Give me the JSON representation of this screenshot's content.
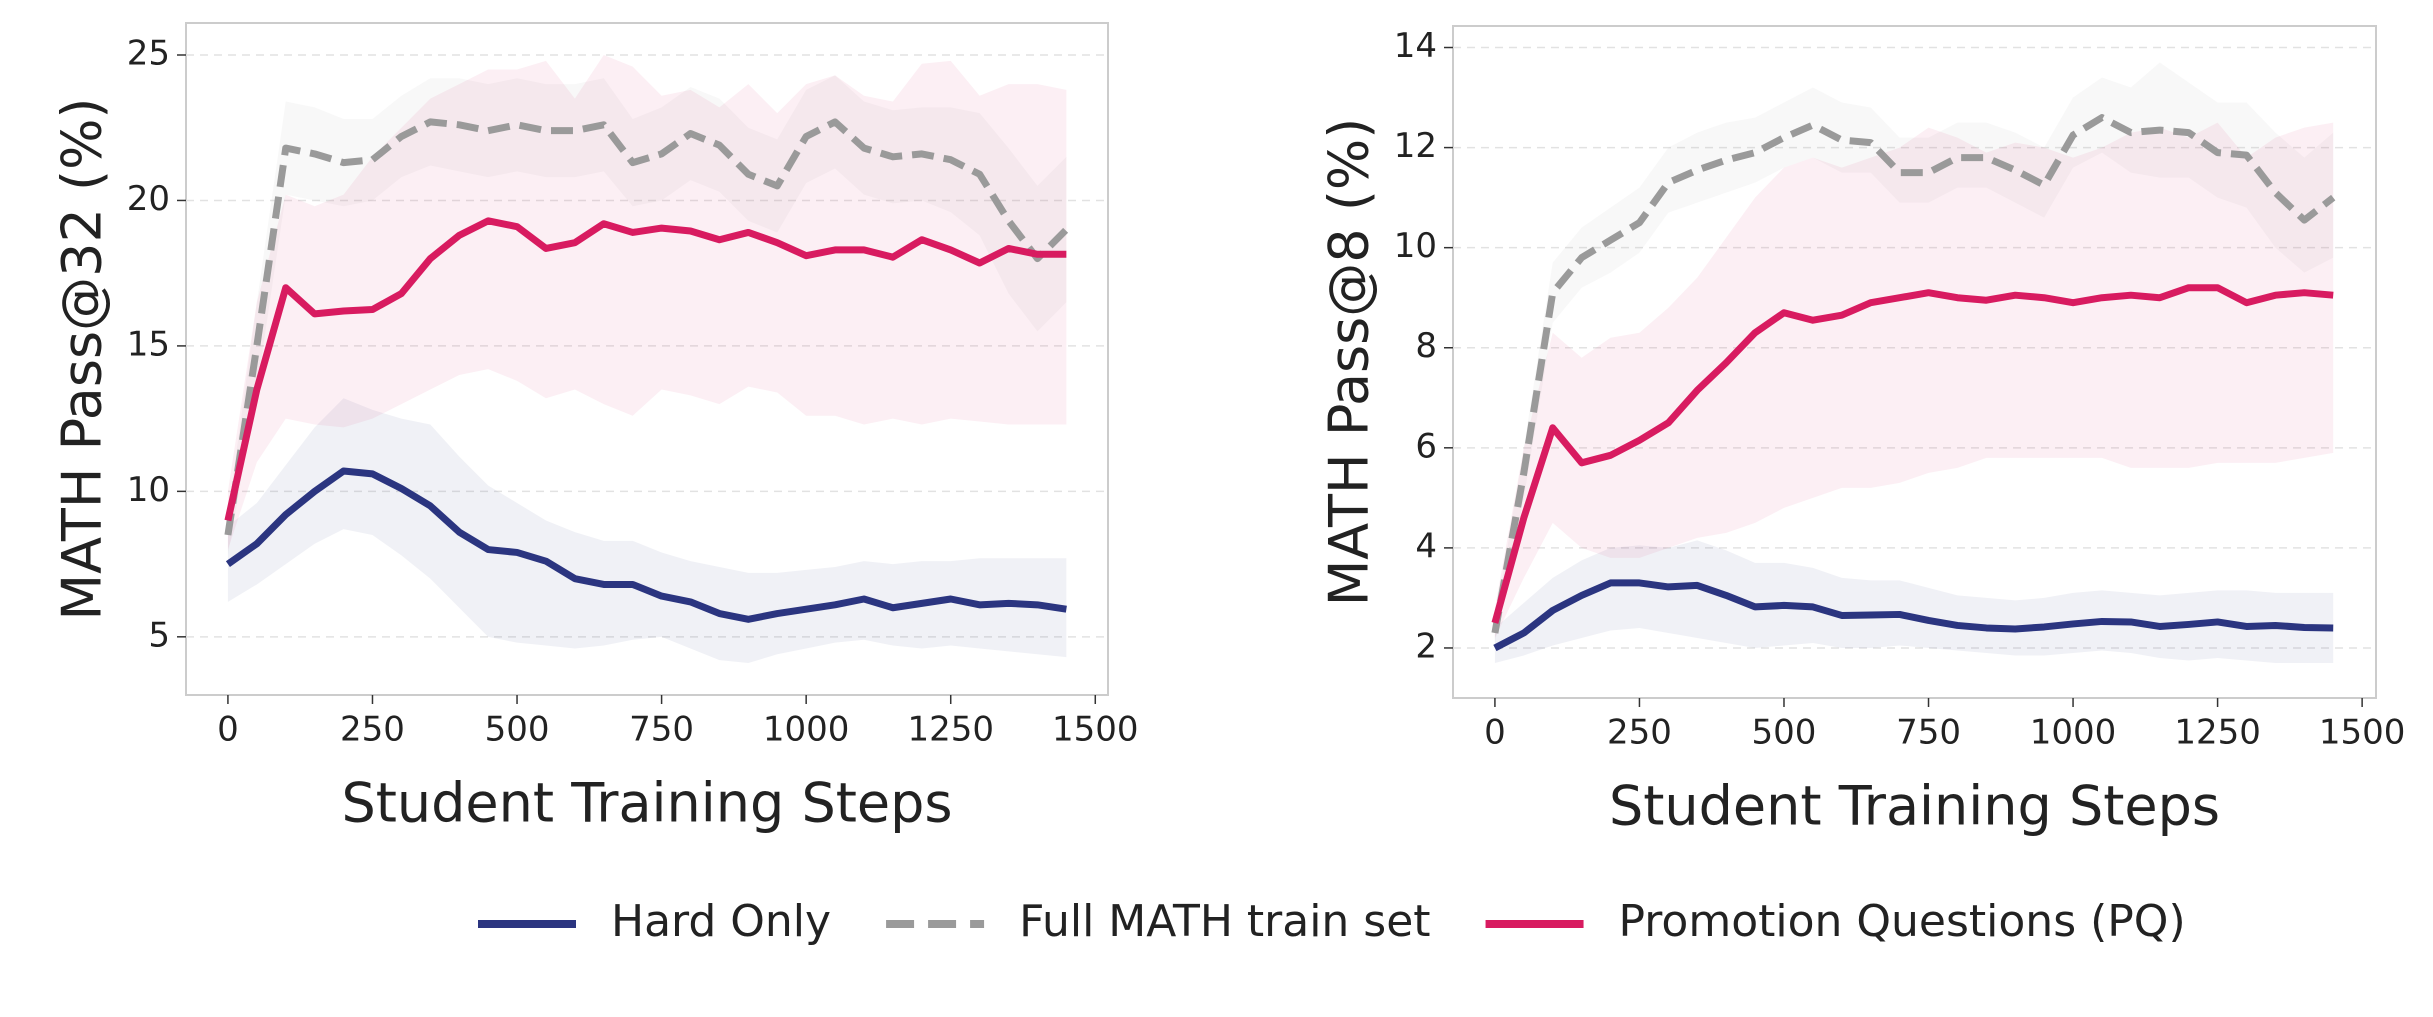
{
  "chart_data": [
    {
      "type": "line",
      "xlabel": "Student Training Steps",
      "ylabel": "MATH Pass@32 (%)",
      "x": [
        0,
        50,
        100,
        150,
        200,
        250,
        300,
        350,
        400,
        450,
        500,
        550,
        600,
        650,
        700,
        750,
        800,
        850,
        900,
        950,
        1000,
        1050,
        1100,
        1150,
        1200,
        1250,
        1300,
        1350,
        1400,
        1450
      ],
      "xlim": [
        -72.5,
        1522
      ],
      "ylim": [
        3,
        26.1
      ],
      "xticks": [
        0,
        250,
        500,
        750,
        1000,
        1250,
        1500
      ],
      "yticks": [
        5,
        10,
        15,
        20,
        25
      ],
      "grid": true,
      "series": [
        {
          "color": "#2b3580",
          "dashed": false,
          "values": [
            7.5,
            8.2,
            9.2,
            10.0,
            10.7,
            10.6,
            10.1,
            9.5,
            8.6,
            8.0,
            7.9,
            7.6,
            7.0,
            6.8,
            6.8,
            6.4,
            6.2,
            5.8,
            5.6,
            5.8,
            5.95,
            6.1,
            6.3,
            6.0,
            6.15,
            6.3,
            6.1,
            6.15,
            6.1,
            5.95
          ],
          "lower": [
            6.2,
            6.8,
            7.5,
            8.2,
            8.7,
            8.5,
            7.8,
            7.0,
            6.0,
            5.0,
            4.8,
            4.7,
            4.6,
            4.7,
            4.9,
            5.0,
            4.6,
            4.2,
            4.1,
            4.4,
            4.6,
            4.8,
            4.9,
            4.7,
            4.6,
            4.7,
            4.6,
            4.5,
            4.4,
            4.3
          ],
          "upper": [
            8.8,
            9.6,
            10.9,
            12.2,
            13.2,
            12.8,
            12.5,
            12.3,
            11.2,
            10.2,
            9.6,
            9.0,
            8.6,
            8.3,
            8.3,
            7.9,
            7.6,
            7.4,
            7.2,
            7.2,
            7.3,
            7.4,
            7.6,
            7.5,
            7.6,
            7.6,
            7.7,
            7.7,
            7.7,
            7.7
          ]
        },
        {
          "color": "#9a9a9a",
          "dashed": true,
          "values": [
            8.5,
            15,
            21.8,
            21.6,
            21.3,
            21.4,
            22.2,
            22.7,
            22.6,
            22.4,
            22.6,
            22.4,
            22.4,
            22.6,
            21.3,
            21.6,
            22.3,
            21.9,
            20.9,
            20.5,
            22.2,
            22.7,
            21.8,
            21.5,
            21.6,
            21.4,
            20.9,
            19.3,
            18.0,
            19.0
          ],
          "lower": [
            7.8,
            13.5,
            20.2,
            20.0,
            19.8,
            20.0,
            20.8,
            21.2,
            21.0,
            20.8,
            21.0,
            20.8,
            20.8,
            21.0,
            19.8,
            20.0,
            20.7,
            20.3,
            19.3,
            18.9,
            20.6,
            21.1,
            20.2,
            19.9,
            20.0,
            19.6,
            18.8,
            16.8,
            15.5,
            16.5
          ],
          "upper": [
            9.2,
            16.5,
            23.4,
            23.2,
            22.8,
            22.8,
            23.6,
            24.2,
            24.2,
            24.0,
            24.2,
            24.0,
            24.0,
            24.2,
            22.8,
            23.2,
            23.9,
            23.5,
            22.5,
            22.1,
            23.8,
            24.3,
            23.4,
            23.1,
            23.2,
            23.2,
            23.0,
            21.8,
            20.5,
            21.5
          ]
        },
        {
          "color": "#d81b60",
          "dashed": false,
          "values": [
            9.0,
            13.5,
            17.0,
            16.1,
            16.2,
            16.25,
            16.8,
            18.0,
            18.8,
            19.3,
            19.1,
            18.35,
            18.55,
            19.2,
            18.9,
            19.05,
            18.95,
            18.65,
            18.9,
            18.55,
            18.1,
            18.3,
            18.3,
            18.05,
            18.65,
            18.3,
            17.85,
            18.35,
            18.15,
            18.15
          ],
          "lower": [
            8,
            11,
            12.5,
            12.3,
            12.2,
            12.5,
            13.0,
            13.5,
            14.0,
            14.2,
            13.8,
            13.2,
            13.5,
            13.0,
            12.6,
            13.5,
            13.3,
            13.0,
            13.6,
            13.4,
            12.6,
            12.6,
            12.3,
            12.5,
            12.3,
            12.5,
            12.4,
            12.3,
            12.3,
            12.3
          ],
          "upper": [
            10,
            16.5,
            20.2,
            19.8,
            20.2,
            21.5,
            22.5,
            23.5,
            24.0,
            24.5,
            24.5,
            24.8,
            23.5,
            25.0,
            24.6,
            23.6,
            23.8,
            23.2,
            24.0,
            23.0,
            24.0,
            24.3,
            23.6,
            23.4,
            24.7,
            24.8,
            23.6,
            24.0,
            24.0,
            23.8
          ]
        }
      ]
    },
    {
      "type": "line",
      "xlabel": "Student Training Steps",
      "ylabel": "MATH Pass@8 (%)",
      "x": [
        0,
        50,
        100,
        150,
        200,
        250,
        300,
        350,
        400,
        450,
        500,
        550,
        600,
        650,
        700,
        750,
        800,
        850,
        900,
        950,
        1000,
        1050,
        1100,
        1150,
        1200,
        1250,
        1300,
        1350,
        1400,
        1450
      ],
      "xlim": [
        -72.5,
        1524
      ],
      "ylim": [
        1.0,
        14.43
      ],
      "xticks": [
        0,
        250,
        500,
        750,
        1000,
        1250,
        1500
      ],
      "yticks": [
        2,
        4,
        6,
        8,
        10,
        12,
        14
      ],
      "grid": true,
      "series": [
        {
          "color": "#2b3580",
          "dashed": false,
          "values": [
            2.0,
            2.3,
            2.75,
            3.05,
            3.3,
            3.3,
            3.22,
            3.25,
            3.05,
            2.82,
            2.85,
            2.82,
            2.65,
            2.66,
            2.67,
            2.55,
            2.45,
            2.4,
            2.38,
            2.42,
            2.48,
            2.53,
            2.52,
            2.43,
            2.47,
            2.52,
            2.43,
            2.45,
            2.41,
            2.4
          ],
          "lower": [
            1.7,
            1.85,
            2.05,
            2.2,
            2.35,
            2.4,
            2.3,
            2.2,
            2.1,
            2.0,
            2.05,
            2.1,
            2.0,
            2.0,
            2.05,
            2.0,
            1.95,
            1.9,
            1.85,
            1.85,
            1.9,
            1.95,
            1.9,
            1.8,
            1.75,
            1.8,
            1.75,
            1.7,
            1.7,
            1.7
          ],
          "upper": [
            2.4,
            2.9,
            3.4,
            3.75,
            4.0,
            4.05,
            4.0,
            4.15,
            3.95,
            3.7,
            3.7,
            3.6,
            3.4,
            3.35,
            3.35,
            3.2,
            3.05,
            3.0,
            2.95,
            3.0,
            3.1,
            3.15,
            3.1,
            3.05,
            3.1,
            3.15,
            3.15,
            3.1,
            3.1,
            3.1
          ]
        },
        {
          "color": "#9a9a9a",
          "dashed": true,
          "values": [
            2.3,
            5.5,
            9.1,
            9.8,
            10.15,
            10.5,
            11.3,
            11.55,
            11.75,
            11.9,
            12.2,
            12.45,
            12.15,
            12.1,
            11.5,
            11.5,
            11.8,
            11.8,
            11.55,
            11.25,
            12.25,
            12.6,
            12.3,
            12.35,
            12.3,
            11.9,
            11.85,
            11.1,
            10.55,
            11.0
          ],
          "lower": [
            2.1,
            5.0,
            8.5,
            9.2,
            9.5,
            9.9,
            10.7,
            10.9,
            11.1,
            11.3,
            11.6,
            11.8,
            11.5,
            11.5,
            10.9,
            10.9,
            11.2,
            11.2,
            10.9,
            10.6,
            11.6,
            11.9,
            11.5,
            11.4,
            11.4,
            11.0,
            10.8,
            10.0,
            9.5,
            9.8
          ],
          "upper": [
            2.5,
            6.0,
            9.7,
            10.4,
            10.8,
            11.2,
            12.0,
            12.3,
            12.5,
            12.6,
            12.9,
            13.2,
            12.9,
            12.8,
            12.2,
            12.2,
            12.5,
            12.5,
            12.3,
            12.0,
            13.0,
            13.4,
            13.2,
            13.7,
            13.3,
            12.9,
            12.9,
            12.3,
            11.8,
            12.3
          ]
        },
        {
          "color": "#d81b60",
          "dashed": false,
          "values": [
            2.5,
            4.6,
            6.4,
            5.7,
            5.85,
            6.15,
            6.5,
            7.15,
            7.7,
            8.3,
            8.7,
            8.55,
            8.65,
            8.9,
            9.0,
            9.1,
            9.0,
            8.95,
            9.05,
            9.0,
            8.9,
            9.0,
            9.05,
            9.0,
            9.2,
            9.2,
            8.9,
            9.05,
            9.1,
            9.05
          ],
          "lower": [
            2.2,
            3.4,
            4.5,
            4.0,
            3.8,
            3.8,
            4.0,
            4.2,
            4.3,
            4.5,
            4.8,
            5.0,
            5.2,
            5.2,
            5.3,
            5.5,
            5.6,
            5.8,
            5.8,
            5.8,
            5.8,
            5.8,
            5.6,
            5.6,
            5.6,
            5.7,
            5.7,
            5.7,
            5.8,
            5.9
          ],
          "upper": [
            2.8,
            6.0,
            8.3,
            7.8,
            8.2,
            8.3,
            8.8,
            9.4,
            10.2,
            11.0,
            11.6,
            11.8,
            11.6,
            11.8,
            12.0,
            12.4,
            12.2,
            11.9,
            12.1,
            12.0,
            11.8,
            12.0,
            12.3,
            12.4,
            12.2,
            12.5,
            11.8,
            12.2,
            12.4,
            12.5
          ]
        }
      ]
    }
  ],
  "legend": [
    {
      "name": "Hard Only",
      "color": "#2b3580",
      "dashed": false
    },
    {
      "name": "Full MATH train set",
      "color": "#9a9a9a",
      "dashed": true
    },
    {
      "name": "Promotion Questions (PQ)",
      "color": "#d81b60",
      "dashed": false
    }
  ]
}
